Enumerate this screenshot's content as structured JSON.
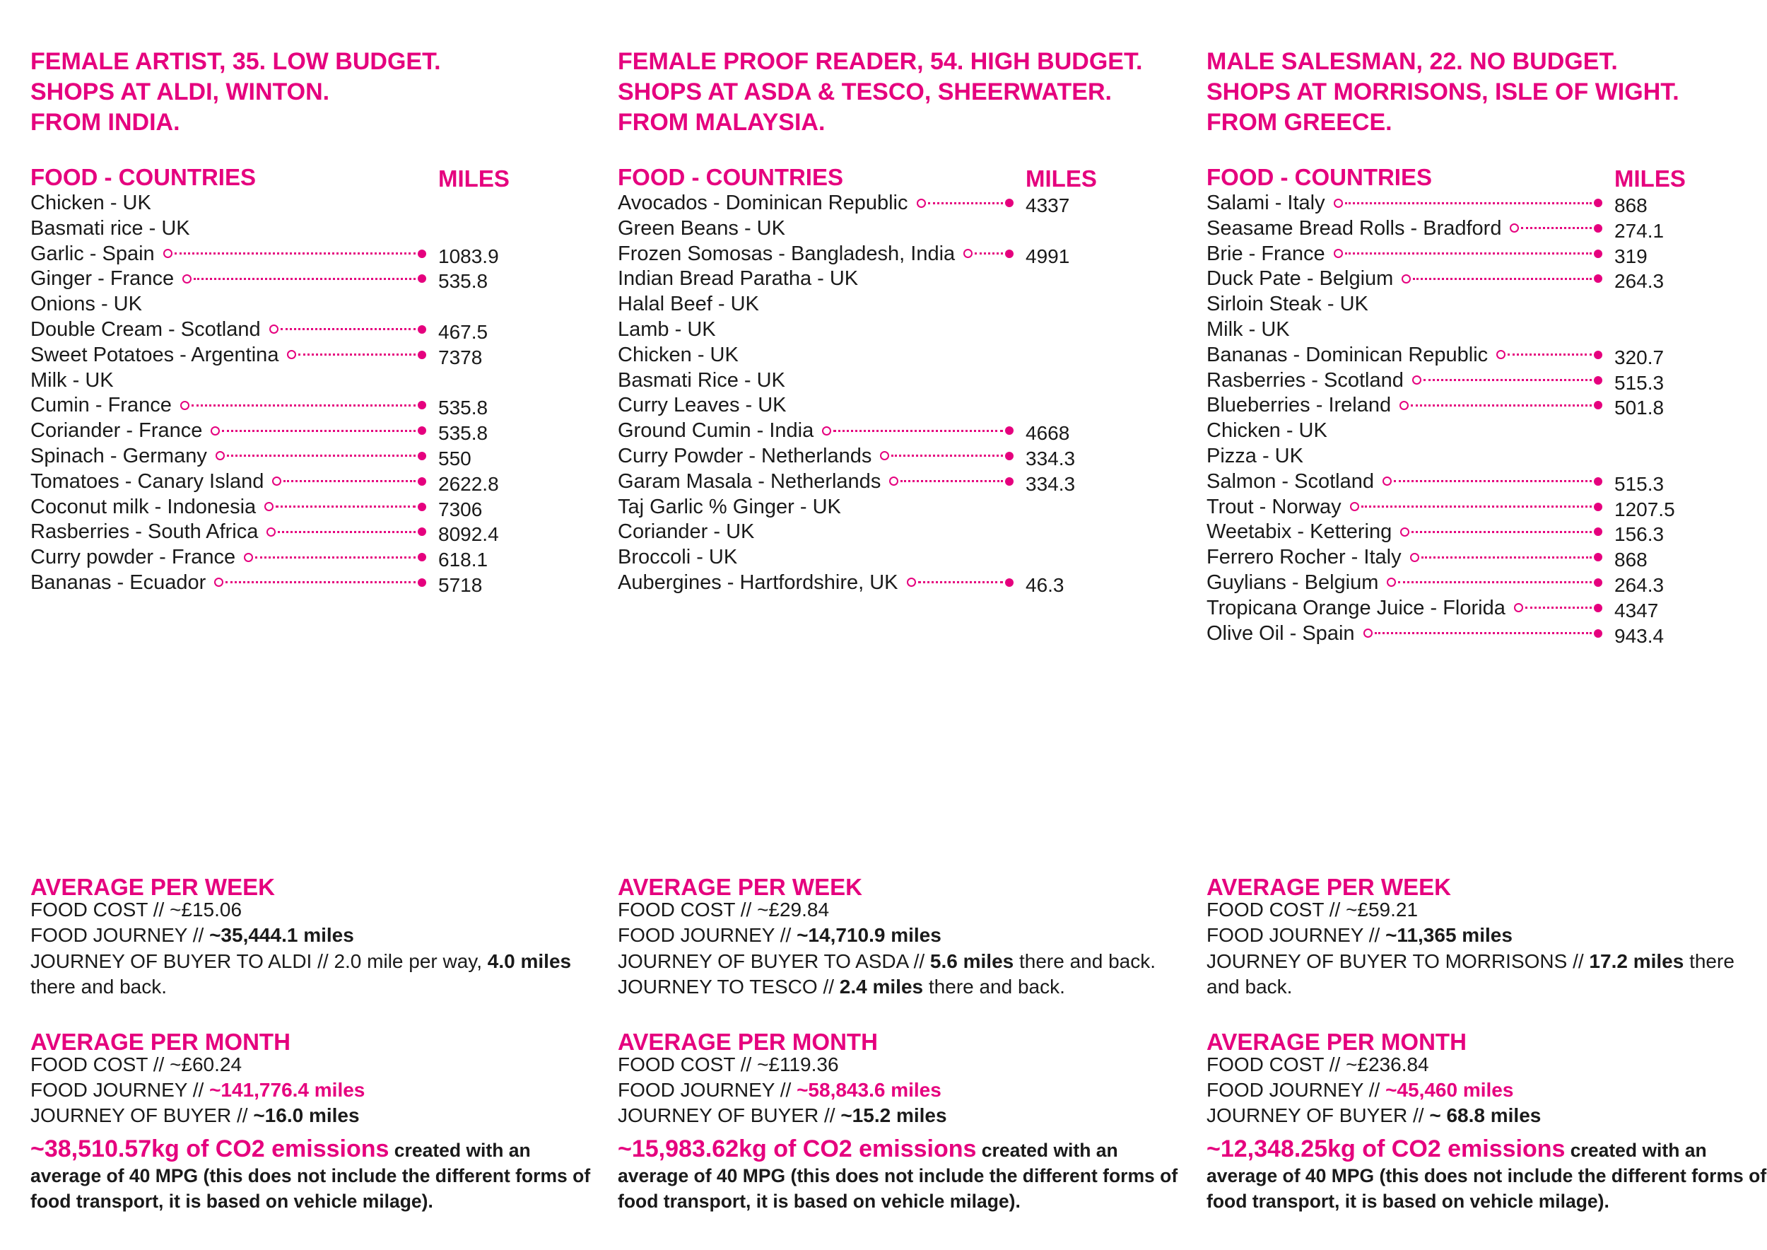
{
  "profiles": [
    {
      "heading": [
        "FEMALE ARTIST, 35. LOW BUDGET.",
        "SHOPS AT ALDI, WINTON.",
        "FROM INDIA."
      ],
      "food_header": "FOOD - COUNTRIES",
      "miles_header": "MILES",
      "items": [
        {
          "label": "Chicken - UK",
          "miles": ""
        },
        {
          "label": "Basmati rice - UK",
          "miles": ""
        },
        {
          "label": "Garlic - Spain",
          "miles": "1083.9"
        },
        {
          "label": "Ginger - France",
          "miles": "535.8"
        },
        {
          "label": "Onions - UK",
          "miles": ""
        },
        {
          "label": "Double Cream - Scotland",
          "miles": "467.5"
        },
        {
          "label": "Sweet Potatoes - Argentina",
          "miles": "7378"
        },
        {
          "label": "Milk - UK",
          "miles": ""
        },
        {
          "label": "Cumin - France",
          "miles": "535.8"
        },
        {
          "label": "Coriander - France",
          "miles": "535.8"
        },
        {
          "label": "Spinach - Germany",
          "miles": "550"
        },
        {
          "label": "Tomatoes - Canary Island",
          "miles": "2622.8"
        },
        {
          "label": "Coconut milk - Indonesia",
          "miles": "7306"
        },
        {
          "label": "Rasberries - South Africa",
          "miles": "8092.4"
        },
        {
          "label": "Curry powder - France",
          "miles": "618.1"
        },
        {
          "label": "Bananas - Ecuador",
          "miles": "5718"
        }
      ],
      "week": {
        "title": "AVERAGE PER WEEK",
        "food_cost_label": "FOOD COST // ",
        "food_cost": "~£15.06",
        "journey_label": "FOOD JOURNEY // ",
        "journey": "~35,444.1 miles",
        "buyer": [
          {
            "t": "JOURNEY OF BUYER TO ALDI // 2.0 mile per way, ",
            "b": false
          },
          {
            "t": "4.0 miles",
            "b": true
          },
          {
            "t": " there and back.",
            "b": false
          }
        ]
      },
      "month": {
        "title": "AVERAGE PER MONTH",
        "food_cost_label": "FOOD COST // ",
        "food_cost": "~£60.24",
        "journey_label": "FOOD JOURNEY // ",
        "journey": "~141,776.4 miles",
        "buyer_label": "JOURNEY OF BUYER // ",
        "buyer": "~16.0 miles"
      },
      "co2_amount": "~38,510.57kg of CO2 emissions",
      "co2_note": " created with an average of 40 MPG (this does not include the different forms of food transport, it is based on vehicle milage)."
    },
    {
      "heading": [
        "FEMALE PROOF READER, 54. HIGH BUDGET.",
        "SHOPS AT ASDA & TESCO, SHEERWATER.",
        "FROM MALAYSIA."
      ],
      "food_header": "FOOD - COUNTRIES",
      "miles_header": "MILES",
      "items": [
        {
          "label": "Avocados - Dominican Republic",
          "miles": "4337"
        },
        {
          "label": "Green Beans - UK",
          "miles": ""
        },
        {
          "label": "Frozen Somosas - Bangladesh, India",
          "miles": "4991"
        },
        {
          "label": "Indian Bread Paratha - UK",
          "miles": ""
        },
        {
          "label": "Halal Beef - UK",
          "miles": ""
        },
        {
          "label": "Lamb - UK",
          "miles": ""
        },
        {
          "label": "Chicken - UK",
          "miles": ""
        },
        {
          "label": "Basmati Rice - UK",
          "miles": ""
        },
        {
          "label": "Curry Leaves - UK",
          "miles": ""
        },
        {
          "label": "Ground Cumin - India",
          "miles": "4668"
        },
        {
          "label": "Curry Powder - Netherlands",
          "miles": "334.3"
        },
        {
          "label": "Garam Masala - Netherlands",
          "miles": "334.3"
        },
        {
          "label": "Taj Garlic % Ginger - UK",
          "miles": ""
        },
        {
          "label": "Coriander - UK",
          "miles": ""
        },
        {
          "label": "Broccoli - UK",
          "miles": ""
        },
        {
          "label": "Aubergines - Hartfordshire, UK",
          "miles": "46.3"
        }
      ],
      "week": {
        "title": "AVERAGE PER WEEK",
        "food_cost_label": "FOOD COST // ",
        "food_cost": "~£29.84",
        "journey_label": "FOOD JOURNEY // ",
        "journey": "~14,710.9 miles",
        "buyer": [
          {
            "t": "JOURNEY OF BUYER TO ASDA // ",
            "b": false
          },
          {
            "t": "5.6 miles",
            "b": true
          },
          {
            "t": " there and back. JOURNEY TO TESCO // ",
            "b": false
          },
          {
            "t": "2.4 miles",
            "b": true
          },
          {
            "t": " there and back.",
            "b": false
          }
        ]
      },
      "month": {
        "title": "AVERAGE PER MONTH",
        "food_cost_label": "FOOD COST // ",
        "food_cost": "~£119.36",
        "journey_label": "FOOD JOURNEY // ",
        "journey": "~58,843.6 miles",
        "buyer_label": "JOURNEY OF BUYER // ",
        "buyer": "~15.2 miles"
      },
      "co2_amount": "~15,983.62kg of CO2 emissions",
      "co2_note": " created with an average of 40 MPG (this does not include the different forms of food transport, it is based on vehicle milage)."
    },
    {
      "heading": [
        "MALE SALESMAN, 22. NO BUDGET.",
        "SHOPS AT MORRISONS, ISLE OF WIGHT.",
        "FROM GREECE."
      ],
      "food_header": "FOOD - COUNTRIES",
      "miles_header": "MILES",
      "items": [
        {
          "label": "Salami - Italy",
          "miles": "868"
        },
        {
          "label": "Seasame Bread Rolls - Bradford",
          "miles": "274.1"
        },
        {
          "label": "Brie - France",
          "miles": "319"
        },
        {
          "label": "Duck Pate - Belgium",
          "miles": "264.3"
        },
        {
          "label": "Sirloin Steak - UK",
          "miles": ""
        },
        {
          "label": "Milk - UK",
          "miles": ""
        },
        {
          "label": "Bananas - Dominican Republic",
          "miles": "320.7"
        },
        {
          "label": "Rasberries - Scotland",
          "miles": "515.3"
        },
        {
          "label": "Blueberries - Ireland",
          "miles": "501.8"
        },
        {
          "label": "Chicken - UK",
          "miles": ""
        },
        {
          "label": "Pizza - UK",
          "miles": ""
        },
        {
          "label": "Salmon - Scotland",
          "miles": "515.3"
        },
        {
          "label": "Trout - Norway",
          "miles": "1207.5"
        },
        {
          "label": "Weetabix - Kettering",
          "miles": "156.3"
        },
        {
          "label": "Ferrero Rocher - Italy",
          "miles": "868"
        },
        {
          "label": "Guylians - Belgium",
          "miles": "264.3"
        },
        {
          "label": "Tropicana Orange Juice - Florida",
          "miles": "4347"
        },
        {
          "label": "Olive Oil - Spain",
          "miles": "943.4"
        }
      ],
      "week": {
        "title": "AVERAGE PER WEEK",
        "food_cost_label": "FOOD COST // ",
        "food_cost": "~£59.21",
        "journey_label": "FOOD JOURNEY // ",
        "journey": "~11,365 miles",
        "buyer": [
          {
            "t": "JOURNEY OF BUYER TO MORRISONS // ",
            "b": false
          },
          {
            "t": "17.2 miles",
            "b": true
          },
          {
            "t": " there and back.",
            "b": false
          }
        ]
      },
      "month": {
        "title": "AVERAGE PER MONTH",
        "food_cost_label": "FOOD COST // ",
        "food_cost": "~£236.84",
        "journey_label": "FOOD JOURNEY // ",
        "journey": "~45,460 miles",
        "buyer_label": "JOURNEY OF BUYER // ",
        "buyer": "~ 68.8 miles"
      },
      "co2_amount": "~12,348.25kg of CO2 emissions",
      "co2_note": " created with an average of 40 MPG (this does not include the different forms of food transport, it is based on vehicle milage)."
    }
  ]
}
